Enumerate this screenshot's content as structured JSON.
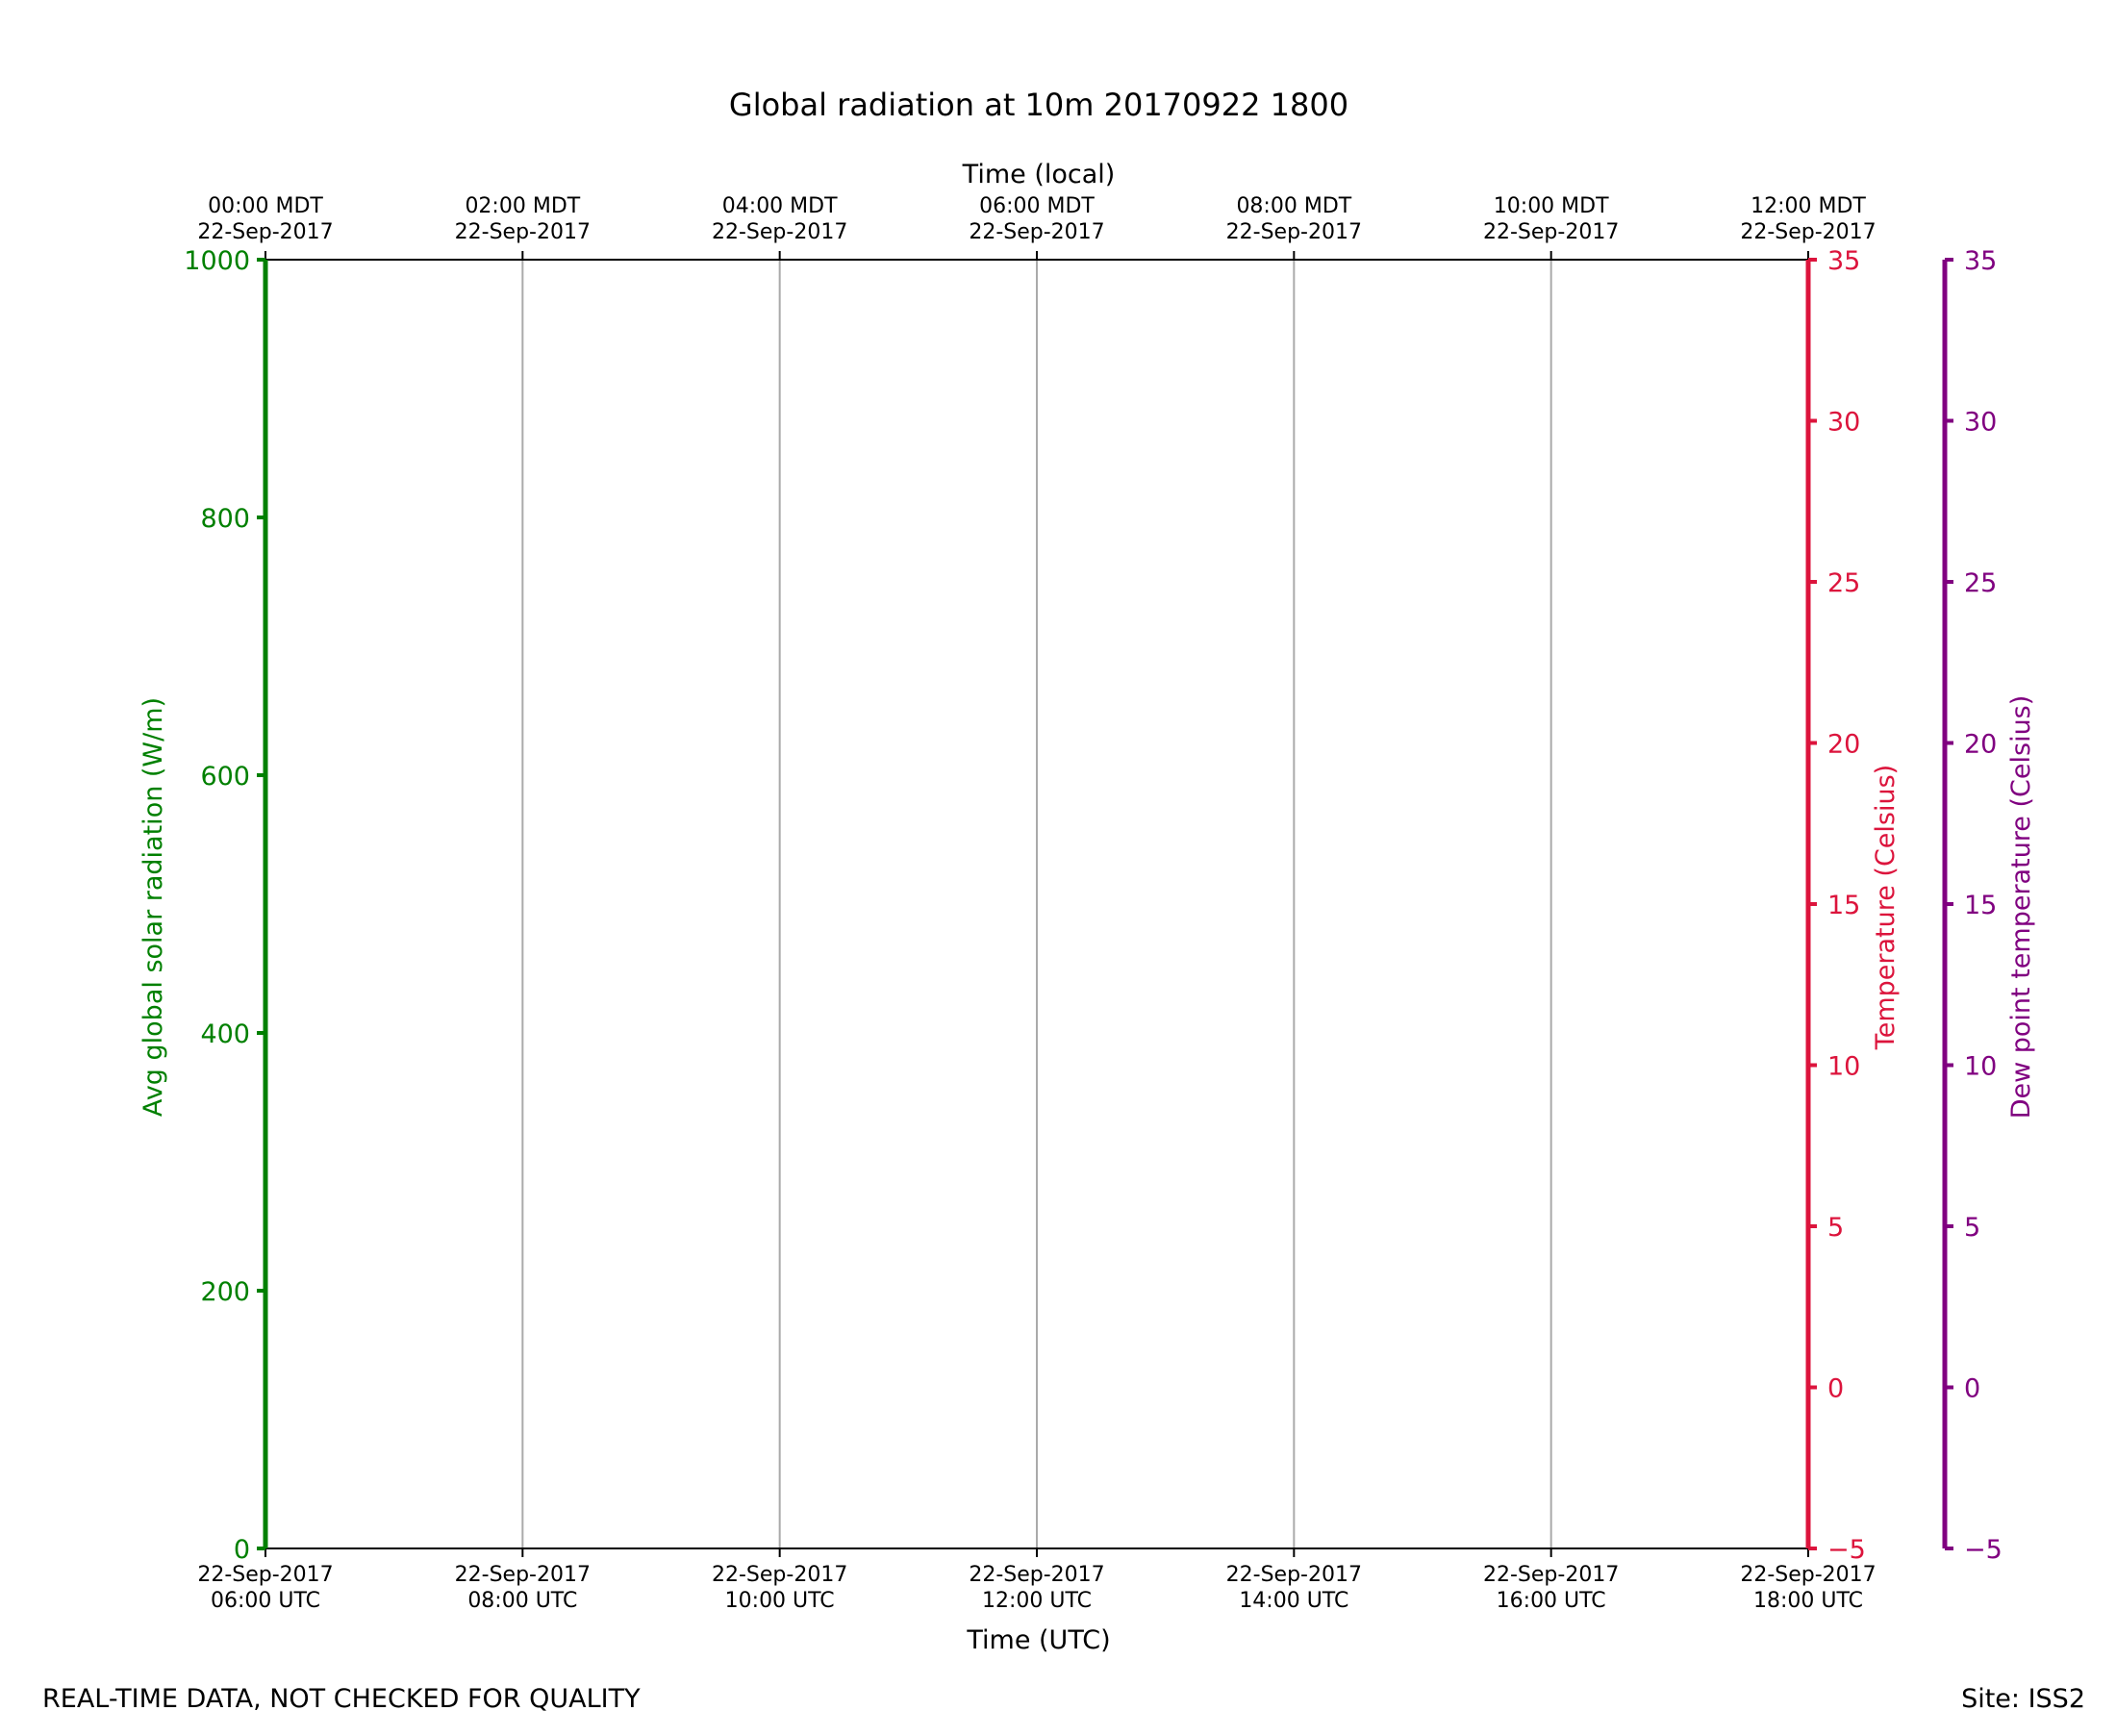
{
  "chart_data": {
    "type": "line",
    "title": "Global radiation at 10m 20170922 1800",
    "x_top_label": "Time (local)",
    "x_bottom_label": "Time (UTC)",
    "x_ticks_local": [
      {
        "time": "00:00 MDT",
        "date": "22-Sep-2017"
      },
      {
        "time": "02:00 MDT",
        "date": "22-Sep-2017"
      },
      {
        "time": "04:00 MDT",
        "date": "22-Sep-2017"
      },
      {
        "time": "06:00 MDT",
        "date": "22-Sep-2017"
      },
      {
        "time": "08:00 MDT",
        "date": "22-Sep-2017"
      },
      {
        "time": "10:00 MDT",
        "date": "22-Sep-2017"
      },
      {
        "time": "12:00 MDT",
        "date": "22-Sep-2017"
      }
    ],
    "x_ticks_utc": [
      {
        "date": "22-Sep-2017",
        "time": "06:00 UTC"
      },
      {
        "date": "22-Sep-2017",
        "time": "08:00 UTC"
      },
      {
        "date": "22-Sep-2017",
        "time": "10:00 UTC"
      },
      {
        "date": "22-Sep-2017",
        "time": "12:00 UTC"
      },
      {
        "date": "22-Sep-2017",
        "time": "14:00 UTC"
      },
      {
        "date": "22-Sep-2017",
        "time": "16:00 UTC"
      },
      {
        "date": "22-Sep-2017",
        "time": "18:00 UTC"
      }
    ],
    "xlim_hours_utc": [
      6,
      18
    ],
    "grid": "vertical",
    "axes": [
      {
        "name": "radiation",
        "label": "Avg global solar radiation (W/m)",
        "side": "left",
        "color": "#008000",
        "ylim": [
          0,
          1000
        ],
        "ticks": [
          0,
          200,
          400,
          600,
          800,
          1000
        ],
        "tick_labels": [
          "0",
          "200",
          "400",
          "600",
          "800",
          "1000"
        ]
      },
      {
        "name": "temperature",
        "label": "Temperature (Celsius)",
        "side": "right",
        "color": "#dc143c",
        "ylim": [
          -5,
          35
        ],
        "ticks": [
          -5,
          0,
          5,
          10,
          15,
          20,
          25,
          30,
          35
        ],
        "tick_labels": [
          "−5",
          "0",
          "5",
          "10",
          "15",
          "20",
          "25",
          "30",
          "35"
        ]
      },
      {
        "name": "dewpoint",
        "label": "Dew point temperature (Celsius)",
        "side": "right-outer",
        "color": "#800080",
        "ylim": [
          -5,
          35
        ],
        "ticks": [
          -5,
          0,
          5,
          10,
          15,
          20,
          25,
          30,
          35
        ],
        "tick_labels": [
          "−5",
          "0",
          "5",
          "10",
          "15",
          "20",
          "25",
          "30",
          "35"
        ]
      }
    ],
    "series": []
  },
  "footer": {
    "disclaimer": "REAL-TIME DATA, NOT CHECKED FOR QUALITY",
    "site": "Site: ISS2"
  },
  "colors": {
    "frame": "#000000",
    "grid": "#aaaaaa"
  }
}
